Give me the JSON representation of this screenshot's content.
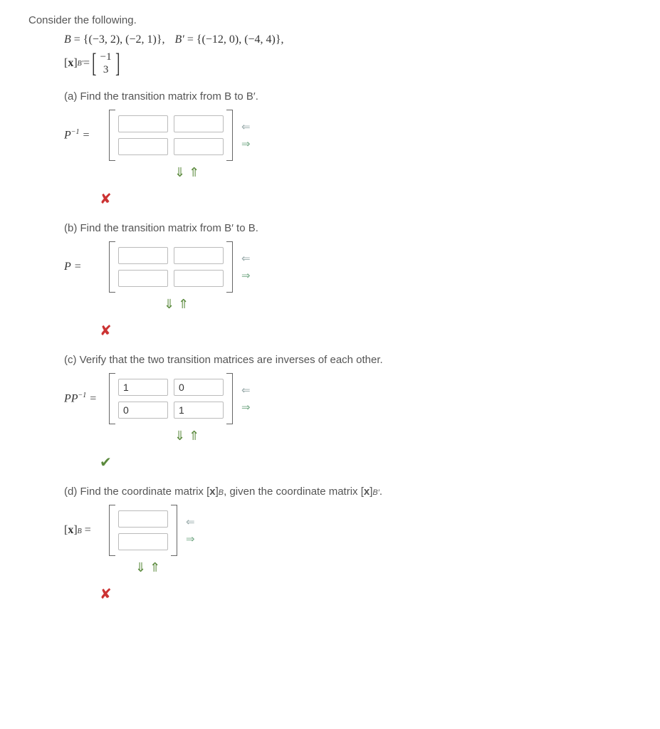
{
  "prompt": "Consider the following.",
  "defs": {
    "B_lhs": "B",
    "B_set": "= {(−3, 2), (−2, 1)},",
    "Bp_lhs": "B′",
    "Bp_set": "= {(−12, 0), (−4, 4)},",
    "xbp_label_pre": "[",
    "xbp_bold": "x",
    "xbp_label_post": "]",
    "xbp_sub": "B′",
    "xbp_eq": " = ",
    "xbp_top": "−1",
    "xbp_bot": "3"
  },
  "parts": {
    "a": {
      "text": "(a) Find the transition matrix from B to B′.",
      "label_html": "P<sup style='font-size:10px'>−1</sup>&nbsp;=",
      "cells": [
        "",
        "",
        "",
        ""
      ],
      "feedback": "wrong"
    },
    "b": {
      "text": "(b) Find the transition matrix from B′ to B.",
      "label_html": "P&nbsp;=",
      "cells": [
        "",
        "",
        "",
        ""
      ],
      "feedback": "wrong"
    },
    "c": {
      "text": "(c) Verify that the two transition matrices are inverses of each other.",
      "label_html": "PP<sup style='font-size:10px'>−1</sup>&nbsp;=",
      "cells": [
        "1",
        "0",
        "0",
        "1"
      ],
      "feedback": "correct"
    },
    "d": {
      "text_pre": "(d) Find the coordinate matrix [",
      "text_bold": "x",
      "text_mid": "]",
      "text_sub1": "B",
      "text_mid2": ", given the coordinate matrix [",
      "text_bold2": "x",
      "text_mid3": "]",
      "text_sub2": "B′",
      "text_post": ".",
      "label_pre": "[",
      "label_bold": "x",
      "label_post": "]",
      "label_sub": "B",
      "label_eq": " =",
      "cells": [
        "",
        ""
      ],
      "feedback": "wrong"
    }
  },
  "glyphs": {
    "arrow_left": "⇐",
    "arrow_right": "⇒",
    "arrow_down": "⇓",
    "arrow_up": "⇑",
    "wrong": "✘",
    "correct": "✔"
  },
  "colors": {
    "text": "#555555",
    "math": "#333333",
    "green": "#5b8a3d",
    "red": "#cc3333",
    "input_border": "#bbbbbb"
  }
}
